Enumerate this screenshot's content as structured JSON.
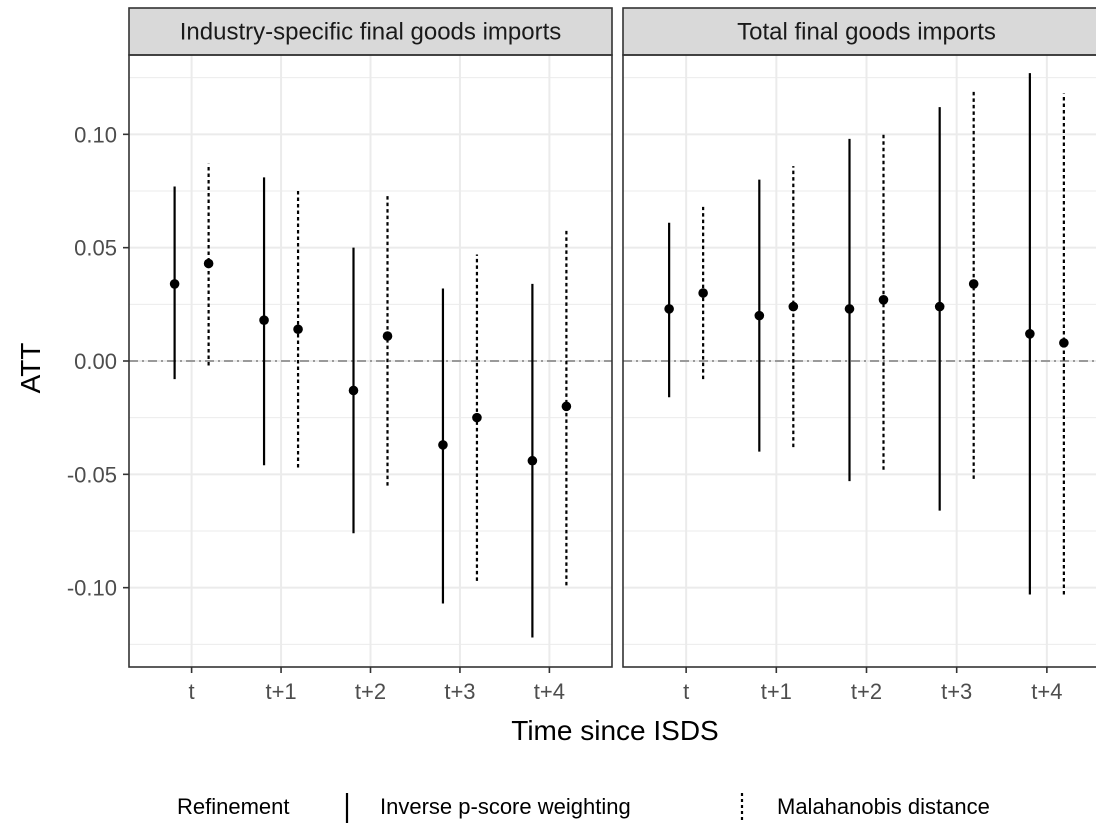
{
  "chart_data": {
    "type": "errorbar",
    "ylabel": "ATT",
    "xlabel": "Time since ISDS",
    "ylim": [
      -0.135,
      0.135
    ],
    "yticks": [
      0.1,
      0.05,
      0.0,
      -0.05,
      -0.1
    ],
    "ytick_labels": [
      "0.10",
      "0.05",
      "0.00",
      "-0.05",
      "-0.10"
    ],
    "categories": [
      "t",
      "t+1",
      "t+2",
      "t+3",
      "t+4"
    ],
    "reference_line": 0.0,
    "grid": true,
    "legend": {
      "title": "Refinement",
      "position": "bottom",
      "items": [
        {
          "label": "Inverse p-score weighting",
          "linetype": "solid"
        },
        {
          "label": "Malahanobis distance",
          "linetype": "dotted"
        }
      ]
    },
    "panels": [
      {
        "title": "Industry-specific final goods imports",
        "series": [
          {
            "name": "Inverse p-score weighting",
            "linetype": "solid",
            "estimate": [
              0.034,
              0.018,
              -0.013,
              -0.037,
              -0.044
            ],
            "lower": [
              -0.008,
              -0.046,
              -0.076,
              -0.107,
              -0.122
            ],
            "upper": [
              0.077,
              0.081,
              0.05,
              0.032,
              0.034
            ]
          },
          {
            "name": "Malahanobis distance",
            "linetype": "dotted",
            "estimate": [
              0.043,
              0.014,
              0.011,
              -0.025,
              -0.02
            ],
            "lower": [
              -0.002,
              -0.047,
              -0.055,
              -0.097,
              -0.099
            ],
            "upper": [
              0.087,
              0.076,
              0.074,
              0.047,
              0.058
            ]
          }
        ]
      },
      {
        "title": "Total final goods imports",
        "series": [
          {
            "name": "Inverse p-score weighting",
            "linetype": "solid",
            "estimate": [
              0.023,
              0.02,
              0.023,
              0.024,
              0.012
            ],
            "lower": [
              -0.016,
              -0.04,
              -0.053,
              -0.066,
              -0.103
            ],
            "upper": [
              0.061,
              0.08,
              0.098,
              0.112,
              0.127
            ]
          },
          {
            "name": "Malahanobis distance",
            "linetype": "dotted",
            "estimate": [
              0.03,
              0.024,
              0.027,
              0.034,
              0.008
            ],
            "lower": [
              -0.008,
              -0.038,
              -0.048,
              -0.052,
              -0.103
            ],
            "upper": [
              0.068,
              0.086,
              0.101,
              0.12,
              0.118
            ]
          }
        ]
      }
    ]
  },
  "colors": {
    "strip_fill": "#d9d9d9",
    "grid": "#ebebeb",
    "ref_line": "#7f7f7f",
    "point": "#000000"
  }
}
